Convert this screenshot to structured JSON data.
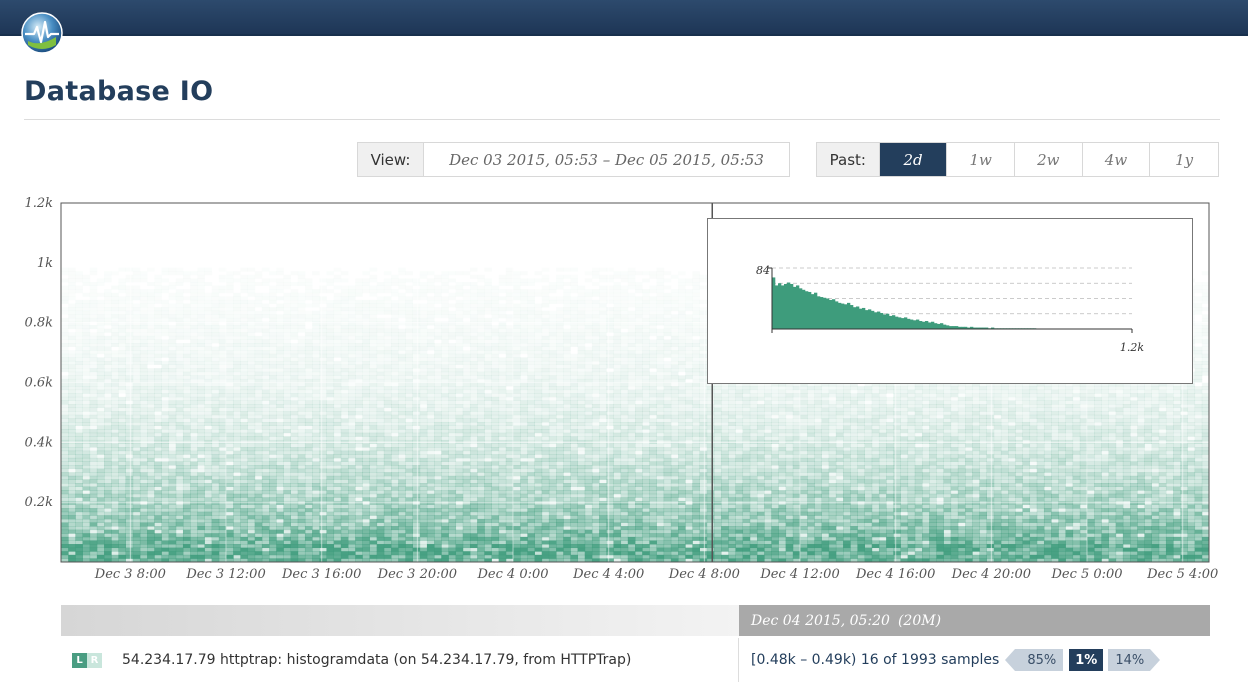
{
  "header": {
    "logo_icon": "heartbeat-globe-icon"
  },
  "page": {
    "title": "Database IO"
  },
  "view": {
    "label": "View:",
    "range": "Dec 03 2015, 05:53  –  Dec 05 2015, 05:53"
  },
  "past": {
    "label": "Past:",
    "options": [
      "2d",
      "1w",
      "2w",
      "4w",
      "1y"
    ],
    "active": "2d"
  },
  "chart_data": {
    "type": "heatmap",
    "x_tick_labels": [
      "Dec 3 8:00",
      "Dec 3 12:00",
      "Dec 3 16:00",
      "Dec 3 20:00",
      "Dec 4 0:00",
      "Dec 4 4:00",
      "Dec 4 8:00",
      "Dec 4 12:00",
      "Dec 4 16:00",
      "Dec 4 20:00",
      "Dec 5 0:00",
      "Dec 5 4:00"
    ],
    "x_range_hours": [
      -2.9,
      45.1
    ],
    "x_tick_hours": [
      0,
      4,
      8,
      12,
      16,
      20,
      24,
      28,
      32,
      36,
      40,
      44
    ],
    "y_tick_labels": [
      "1.2k",
      "1k",
      "0.8k",
      "0.6k",
      "0.4k",
      "0.2k"
    ],
    "y_tick_values": [
      1200,
      1000,
      800,
      600,
      400,
      200
    ],
    "ylim": [
      0,
      1200
    ],
    "cursor_hour": 24.33,
    "color": "#3e9c7c",
    "grid": true,
    "inset": {
      "type": "bar",
      "y_max_label": "84",
      "x_max_label": "1.2k",
      "y_max": 84,
      "x_max": 1200,
      "bin_width": 10,
      "values": [
        71,
        60,
        63,
        60,
        62,
        64,
        62,
        58,
        60,
        56,
        54,
        52,
        51,
        48,
        50,
        45,
        44,
        43,
        42,
        40,
        41,
        38,
        36,
        35,
        34,
        36,
        33,
        30,
        31,
        28,
        29,
        26,
        27,
        25,
        23,
        24,
        22,
        20,
        21,
        18,
        19,
        17,
        16,
        15,
        16,
        14,
        13,
        12,
        13,
        11,
        10,
        11,
        9,
        10,
        8,
        7,
        8,
        6,
        5,
        4,
        4,
        4,
        3,
        3,
        3,
        2,
        3,
        2,
        2,
        2,
        2,
        2,
        1,
        2,
        1,
        1,
        1,
        1,
        1,
        1,
        1,
        1,
        1,
        1,
        1,
        1,
        1,
        1,
        0
      ]
    }
  },
  "status": {
    "time": "Dec 04 2015, 05:20",
    "period": "(20M)"
  },
  "metric": {
    "l_label": "L",
    "r_label": "R",
    "name": "54.234.17.79 httptrap: histogramdata (on 54.234.17.79, from HTTPTrap)",
    "bucket": "[0.48k – 0.49k) 16 of 1993 samples",
    "pct_below": "85%",
    "pct_current": "1%",
    "pct_above": "14%"
  }
}
